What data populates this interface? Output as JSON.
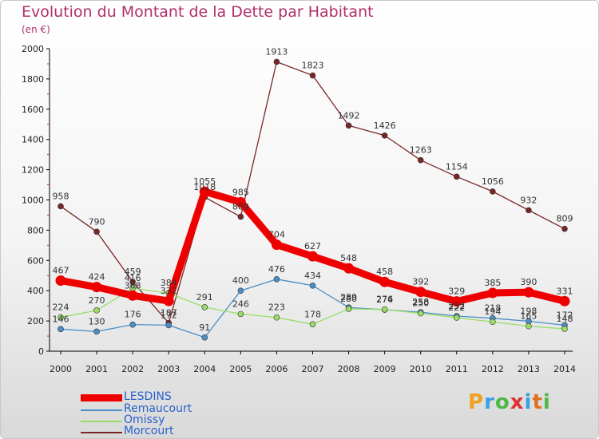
{
  "chart_data": {
    "type": "line",
    "title": "Evolution du Montant de la Dette par Habitant",
    "subtitle": "(en €)",
    "categories": [
      "2000",
      "2001",
      "2002",
      "2003",
      "2004",
      "2005",
      "2006",
      "2007",
      "2008",
      "2009",
      "2010",
      "2011",
      "2012",
      "2013",
      "2014"
    ],
    "ylim": [
      0,
      2000
    ],
    "yticks": [
      0,
      200,
      400,
      600,
      800,
      1000,
      1200,
      1400,
      1600,
      1800,
      2000
    ],
    "grid": false,
    "legend_position": "bottom-left",
    "series": [
      {
        "name": "LESDINS",
        "color": "#ee0000",
        "values": [
          467,
          424,
          368,
          332,
          1055,
          985,
          704,
          627,
          548,
          458,
          392,
          329,
          385,
          390,
          331
        ]
      },
      {
        "name": "Remaucourt",
        "color": "#4a8fc8",
        "values": [
          146,
          130,
          176,
          172,
          91,
          400,
          476,
          434,
          289,
          274,
          258,
          232,
          218,
          198,
          172
        ]
      },
      {
        "name": "Omissy",
        "color": "#99dd66",
        "values": [
          224,
          270,
          416,
          384,
          291,
          246,
          223,
          178,
          280,
          276,
          250,
          222,
          194,
          165,
          148
        ]
      },
      {
        "name": "Morcourt",
        "color": "#7b2626",
        "values": [
          958,
          790,
          459,
          187,
          1018,
          889,
          1913,
          1823,
          1492,
          1426,
          1263,
          1154,
          1056,
          932,
          809
        ]
      }
    ]
  },
  "logo": {
    "letters": [
      "P",
      "r",
      "o",
      "x",
      "i",
      "t",
      "i"
    ],
    "colors": [
      "#f0a020",
      "#3aa0e0",
      "#50b848",
      "#e03030",
      "#3aa0e0",
      "#e07020",
      "#50b848"
    ]
  }
}
